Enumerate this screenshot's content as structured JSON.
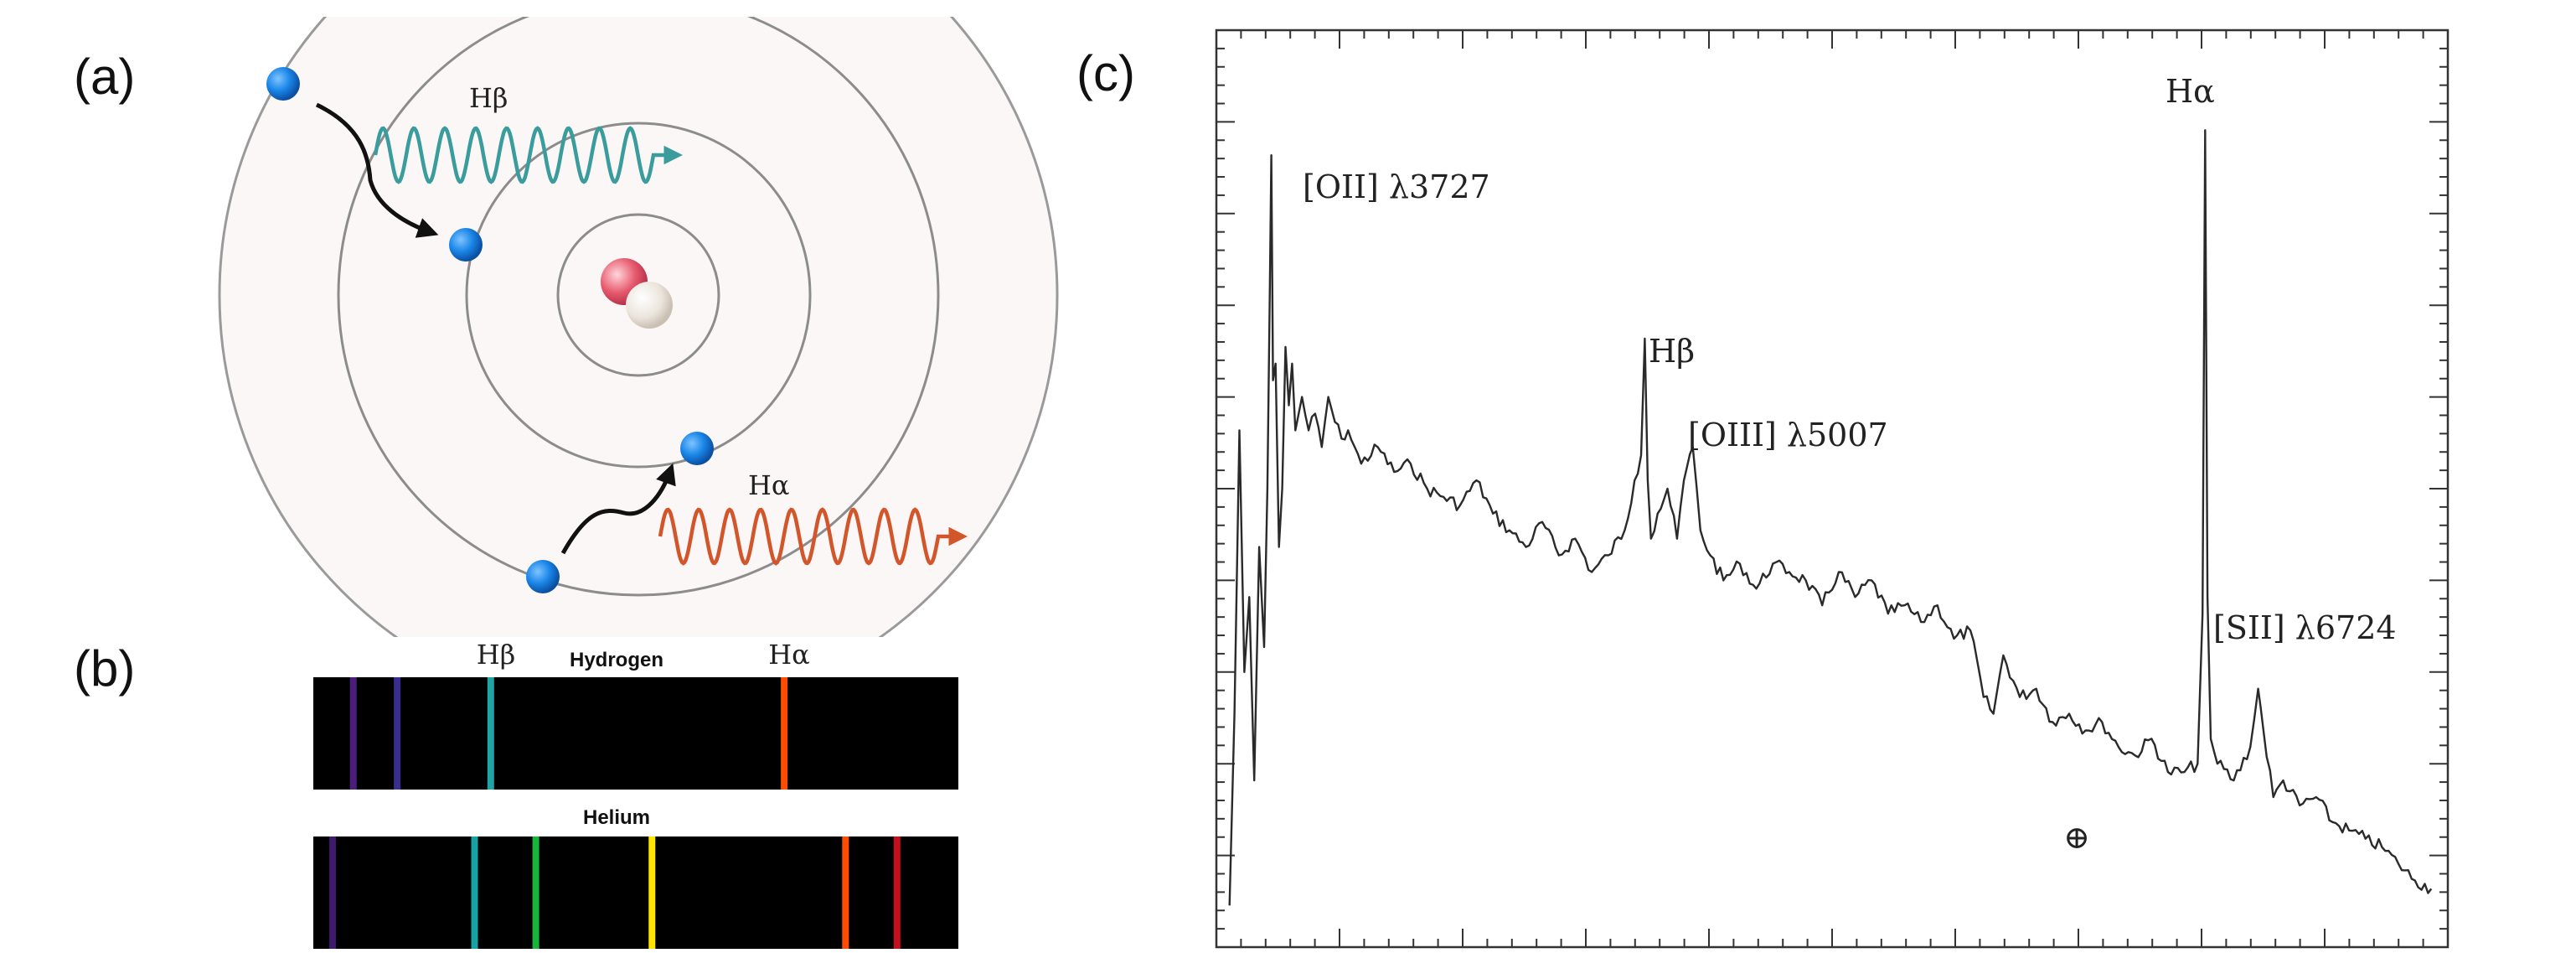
{
  "panels": {
    "a": {
      "label": "(a)",
      "photon_beta": "Hβ",
      "photon_alpha": "Hα",
      "color_beta": "#3a9c9c",
      "color_alpha": "#d2562a",
      "electron_color": "#1a86e8"
    },
    "b": {
      "label": "(b)",
      "hydrogen": {
        "title": "Hydrogen",
        "label_beta": "Hβ",
        "label_alpha": "Hα",
        "lines": [
          {
            "pos": 0.062,
            "color": "#4a1e7a"
          },
          {
            "pos": 0.13,
            "color": "#3a2e8c"
          },
          {
            "pos": 0.275,
            "color": "#1fa3a3"
          },
          {
            "pos": 0.73,
            "color": "#ff4c00"
          }
        ]
      },
      "helium": {
        "title": "Helium",
        "lines": [
          {
            "pos": 0.03,
            "color": "#3f1a6e"
          },
          {
            "pos": 0.25,
            "color": "#17a3a3"
          },
          {
            "pos": 0.345,
            "color": "#17b63a"
          },
          {
            "pos": 0.525,
            "color": "#ffe400"
          },
          {
            "pos": 0.825,
            "color": "#ff4c00"
          },
          {
            "pos": 0.905,
            "color": "#c4101c"
          }
        ]
      }
    },
    "c": {
      "label": "(c)",
      "annotations": {
        "oii": "[OII] λ3727",
        "hbeta": "Hβ",
        "oiii": "[OIII] λ5007",
        "halpha": "Hα",
        "sii": "[SII] λ6724",
        "earth": "⊕"
      }
    }
  },
  "chart_data": {
    "type": "line",
    "title": "",
    "xlabel": "",
    "ylabel": "",
    "grid": false,
    "x": [
      3600,
      3615,
      3630,
      3645,
      3660,
      3675,
      3690,
      3705,
      3715,
      3722,
      3727,
      3732,
      3740,
      3750,
      3760,
      3770,
      3780,
      3790,
      3800,
      3820,
      3840,
      3860,
      3880,
      3900,
      3920,
      3940,
      3960,
      3980,
      4000,
      4050,
      4100,
      4150,
      4200,
      4250,
      4300,
      4350,
      4400,
      4450,
      4500,
      4550,
      4600,
      4650,
      4700,
      4750,
      4800,
      4830,
      4850,
      4861,
      4870,
      4880,
      4900,
      4930,
      4959,
      4980,
      5007,
      5030,
      5060,
      5100,
      5150,
      5200,
      5250,
      5300,
      5350,
      5400,
      5450,
      5500,
      5550,
      5600,
      5650,
      5700,
      5750,
      5800,
      5850,
      5890,
      5920,
      5950,
      6000,
      6050,
      6100,
      6150,
      6200,
      6250,
      6300,
      6350,
      6400,
      6450,
      6500,
      6540,
      6555,
      6563,
      6570,
      6580,
      6600,
      6650,
      6700,
      6724,
      6740,
      6770,
      6800,
      6850,
      6900,
      6950,
      7000,
      7050,
      7100,
      7150,
      7200,
      7250
    ],
    "y": [
      0.05,
      0.28,
      0.62,
      0.33,
      0.42,
      0.2,
      0.48,
      0.36,
      0.55,
      0.78,
      0.95,
      0.68,
      0.7,
      0.48,
      0.55,
      0.72,
      0.65,
      0.7,
      0.62,
      0.66,
      0.62,
      0.64,
      0.6,
      0.66,
      0.63,
      0.61,
      0.62,
      0.6,
      0.58,
      0.6,
      0.57,
      0.58,
      0.55,
      0.54,
      0.53,
      0.56,
      0.52,
      0.5,
      0.48,
      0.51,
      0.47,
      0.49,
      0.45,
      0.47,
      0.5,
      0.56,
      0.59,
      0.73,
      0.56,
      0.49,
      0.52,
      0.55,
      0.49,
      0.56,
      0.6,
      0.5,
      0.47,
      0.44,
      0.46,
      0.43,
      0.46,
      0.45,
      0.44,
      0.41,
      0.45,
      0.42,
      0.44,
      0.4,
      0.41,
      0.39,
      0.41,
      0.37,
      0.38,
      0.3,
      0.28,
      0.35,
      0.3,
      0.31,
      0.27,
      0.28,
      0.26,
      0.27,
      0.24,
      0.23,
      0.25,
      0.21,
      0.21,
      0.22,
      0.4,
      0.98,
      0.42,
      0.25,
      0.22,
      0.2,
      0.24,
      0.31,
      0.26,
      0.18,
      0.2,
      0.17,
      0.18,
      0.15,
      0.14,
      0.13,
      0.12,
      0.1,
      0.08,
      0.07
    ],
    "xlim": [
      3560,
      7300
    ],
    "ylim": [
      0,
      1.1
    ]
  }
}
